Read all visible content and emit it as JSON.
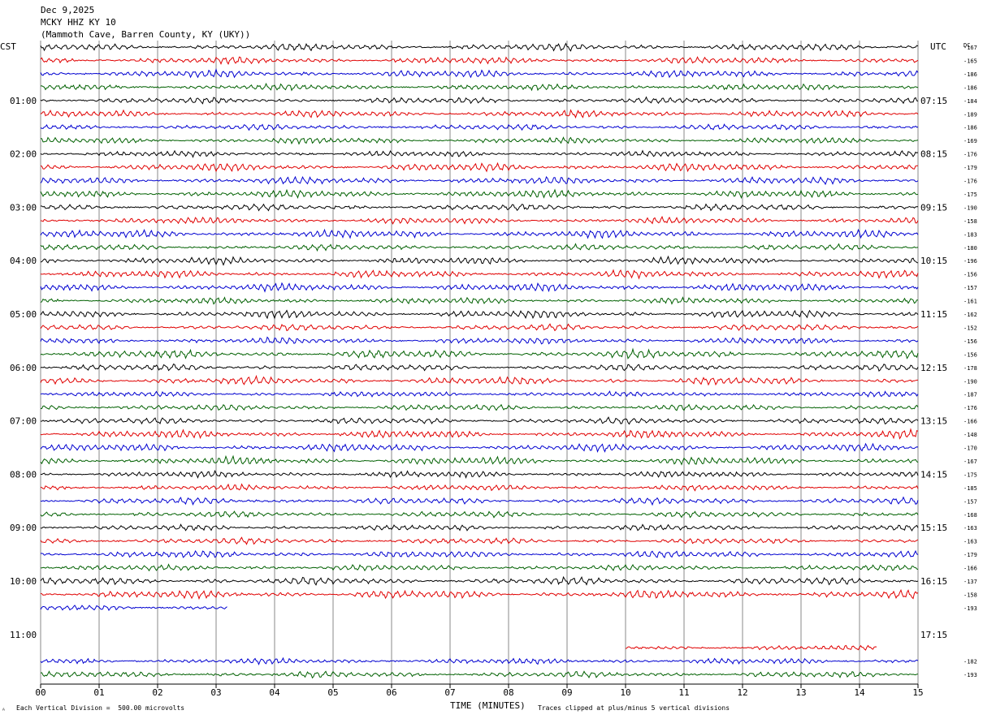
{
  "header": {
    "date": "Dec 9,2025",
    "station": "MCKY HHZ KY 10",
    "location": "(Mammoth Cave, Barren County, KY (UKY))"
  },
  "footer": {
    "mark": "ᴬ",
    "vertical_division": "Each Vertical Division =  500.00 microvolts",
    "clipping_note": "Traces clipped at plus/minus 5 vertical divisions"
  },
  "colors": {
    "trace": [
      "#000000",
      "#e00000",
      "#0000d0",
      "#006000"
    ],
    "grid": "#888888"
  },
  "chart_data": {
    "type": "line",
    "title": "",
    "xlabel": "TIME (MINUTES)",
    "ylabel_left": "CST",
    "ylabel_right": "UTC",
    "dc_label": "DC",
    "x_ticks": [
      "00",
      "01",
      "02",
      "03",
      "04",
      "05",
      "06",
      "07",
      "08",
      "09",
      "10",
      "11",
      "12",
      "13",
      "14",
      "15"
    ],
    "xlim": [
      0,
      15
    ],
    "grid": true,
    "rows_per_hour": 4,
    "cst_labels": [
      "01:00",
      "02:00",
      "03:00",
      "04:00",
      "05:00",
      "06:00",
      "07:00",
      "08:00",
      "09:00",
      "10:00",
      "11:00"
    ],
    "utc_labels": [
      "07:15",
      "08:15",
      "09:15",
      "10:15",
      "11:15",
      "12:15",
      "13:15",
      "14:15",
      "15:15",
      "16:15",
      "17:15"
    ],
    "traces": [
      {
        "row": 0,
        "start": 0,
        "end": 15,
        "dc": "-167"
      },
      {
        "row": 1,
        "start": 0,
        "end": 15,
        "dc": "-165"
      },
      {
        "row": 2,
        "start": 0,
        "end": 15,
        "dc": "-186"
      },
      {
        "row": 3,
        "start": 0,
        "end": 15,
        "dc": "-186"
      },
      {
        "row": 4,
        "start": 0,
        "end": 15,
        "dc": "-184"
      },
      {
        "row": 5,
        "start": 0,
        "end": 15,
        "dc": "-189"
      },
      {
        "row": 6,
        "start": 0,
        "end": 15,
        "dc": "-186"
      },
      {
        "row": 7,
        "start": 0,
        "end": 15,
        "dc": "-169"
      },
      {
        "row": 8,
        "start": 0,
        "end": 15,
        "dc": "-176"
      },
      {
        "row": 9,
        "start": 0,
        "end": 15,
        "dc": "-179"
      },
      {
        "row": 10,
        "start": 0,
        "end": 15,
        "dc": "-176"
      },
      {
        "row": 11,
        "start": 0,
        "end": 15,
        "dc": "-175"
      },
      {
        "row": 12,
        "start": 0,
        "end": 15,
        "dc": "-190"
      },
      {
        "row": 13,
        "start": 0,
        "end": 15,
        "dc": "-158"
      },
      {
        "row": 14,
        "start": 0,
        "end": 15,
        "dc": "-183"
      },
      {
        "row": 15,
        "start": 0,
        "end": 15,
        "dc": "-180"
      },
      {
        "row": 16,
        "start": 0,
        "end": 15,
        "dc": "-196"
      },
      {
        "row": 17,
        "start": 0,
        "end": 15,
        "dc": "-156"
      },
      {
        "row": 18,
        "start": 0,
        "end": 15,
        "dc": "-157"
      },
      {
        "row": 19,
        "start": 0,
        "end": 15,
        "dc": "-161"
      },
      {
        "row": 20,
        "start": 0,
        "end": 15,
        "dc": "-162"
      },
      {
        "row": 21,
        "start": 0,
        "end": 15,
        "dc": "-152"
      },
      {
        "row": 22,
        "start": 0,
        "end": 15,
        "dc": "-156"
      },
      {
        "row": 23,
        "start": 0,
        "end": 15,
        "dc": "-156"
      },
      {
        "row": 24,
        "start": 0,
        "end": 15,
        "dc": "-178"
      },
      {
        "row": 25,
        "start": 0,
        "end": 15,
        "dc": "-190"
      },
      {
        "row": 26,
        "start": 0,
        "end": 15,
        "dc": "-187"
      },
      {
        "row": 27,
        "start": 0,
        "end": 15,
        "dc": "-176"
      },
      {
        "row": 28,
        "start": 0,
        "end": 15,
        "dc": "-166"
      },
      {
        "row": 29,
        "start": 0,
        "end": 15,
        "dc": "-148"
      },
      {
        "row": 30,
        "start": 0,
        "end": 15,
        "dc": "-170"
      },
      {
        "row": 31,
        "start": 0,
        "end": 15,
        "dc": "-167"
      },
      {
        "row": 32,
        "start": 0,
        "end": 15,
        "dc": "-175"
      },
      {
        "row": 33,
        "start": 0,
        "end": 15,
        "dc": "-185"
      },
      {
        "row": 34,
        "start": 0,
        "end": 15,
        "dc": "-157"
      },
      {
        "row": 35,
        "start": 0,
        "end": 15,
        "dc": "-168"
      },
      {
        "row": 36,
        "start": 0,
        "end": 15,
        "dc": "-163"
      },
      {
        "row": 37,
        "start": 0,
        "end": 15,
        "dc": "-163"
      },
      {
        "row": 38,
        "start": 0,
        "end": 15,
        "dc": "-179"
      },
      {
        "row": 39,
        "start": 0,
        "end": 15,
        "dc": "-166"
      },
      {
        "row": 40,
        "start": 0,
        "end": 15,
        "dc": "-137"
      },
      {
        "row": 41,
        "start": 0,
        "end": 15,
        "dc": "-158"
      },
      {
        "row": 42,
        "start": 0,
        "end": 3.2,
        "dc": "-193"
      },
      {
        "row": 45,
        "start": 10,
        "end": 14.3,
        "dc": ""
      },
      {
        "row": 46,
        "start": 0,
        "end": 15,
        "dc": "-182"
      },
      {
        "row": 47,
        "start": 0,
        "end": 15,
        "dc": "-193"
      }
    ]
  }
}
